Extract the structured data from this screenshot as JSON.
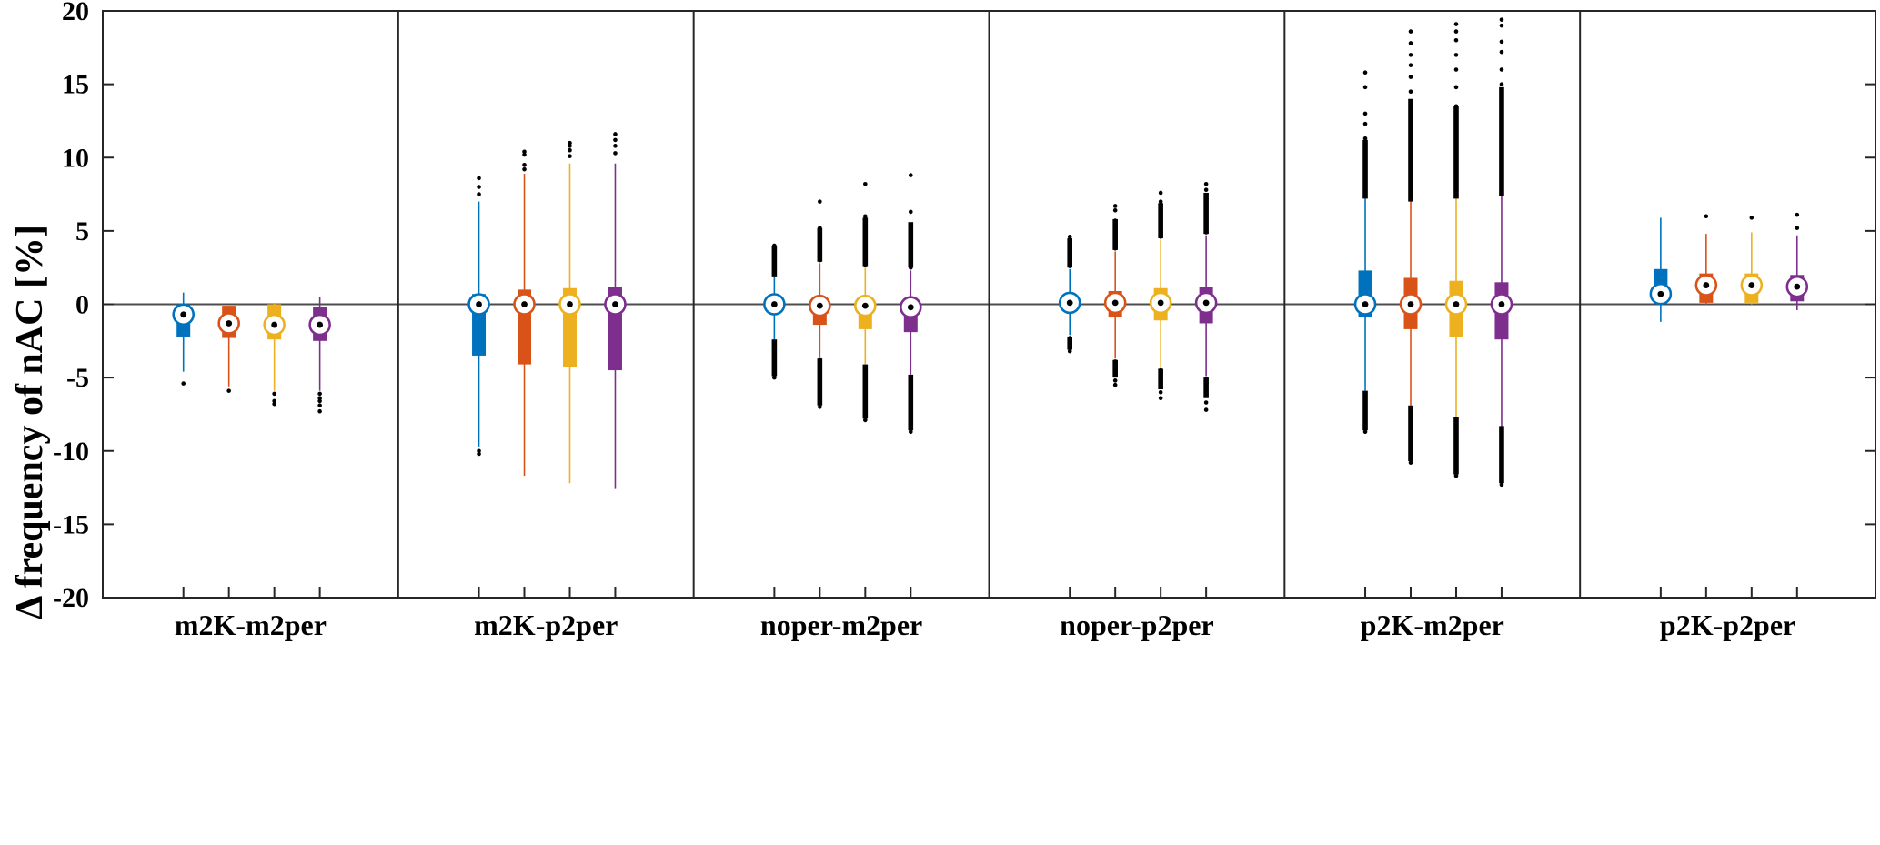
{
  "chart_data": {
    "type": "boxplot",
    "ylabel": "Δ frequency of nAC [%]",
    "ylim": [
      -20,
      20
    ],
    "yticks": [
      20,
      15,
      10,
      5,
      0,
      -5,
      -10,
      -15,
      -20
    ],
    "ytick_labels": [
      "20",
      "15",
      "10",
      "5",
      "0",
      "-5",
      "-10",
      "-15",
      "-20"
    ],
    "zero_line": 0,
    "series_colors": [
      "#0072BD",
      "#D95319",
      "#EDB120",
      "#7E2F8E"
    ],
    "groups": [
      {
        "label": "m2K-m2per",
        "boxes": [
          {
            "median": -0.7,
            "q1": -2.2,
            "q3": 0.0,
            "whisker_low": -4.6,
            "whisker_high": 0.8,
            "outliers": [
              -5.4
            ]
          },
          {
            "median": -1.3,
            "q1": -2.3,
            "q3": -0.1,
            "whisker_low": -5.6,
            "whisker_high": -0.1,
            "outliers": [
              -5.9
            ]
          },
          {
            "median": -1.4,
            "q1": -2.4,
            "q3": 0.0,
            "whisker_low": -5.9,
            "whisker_high": 0.1,
            "outliers": [
              -6.1,
              -6.6,
              -6.8
            ]
          },
          {
            "median": -1.4,
            "q1": -2.5,
            "q3": -0.2,
            "whisker_low": -5.9,
            "whisker_high": 0.5,
            "outliers": [
              -6.1,
              -6.4,
              -6.6,
              -6.9,
              -7.3
            ]
          }
        ]
      },
      {
        "label": "m2K-p2per",
        "boxes": [
          {
            "median": 0.0,
            "q1": -3.5,
            "q3": 0.7,
            "whisker_low": -9.7,
            "whisker_high": 7.0,
            "outliers": [
              7.5,
              8.0,
              8.6,
              -10.0,
              -10.2
            ]
          },
          {
            "median": 0.0,
            "q1": -4.1,
            "q3": 1.0,
            "whisker_low": -11.7,
            "whisker_high": 8.9,
            "outliers": [
              9.2,
              9.5,
              10.2,
              10.4
            ]
          },
          {
            "median": 0.0,
            "q1": -4.3,
            "q3": 1.1,
            "whisker_low": -12.2,
            "whisker_high": 9.6,
            "outliers": [
              10.1,
              10.5,
              10.8,
              11.0
            ]
          },
          {
            "median": 0.0,
            "q1": -4.5,
            "q3": 1.2,
            "whisker_low": -12.6,
            "whisker_high": 9.6,
            "outliers": [
              10.3,
              10.8,
              11.2,
              11.6
            ]
          }
        ]
      },
      {
        "label": "noper-m2per",
        "boxes": [
          {
            "median": 0.0,
            "q1": -0.6,
            "q3": 0.2,
            "whisker_low": -2.4,
            "whisker_high": 1.9,
            "outliers": [
              2.1,
              2.5,
              2.9,
              3.3,
              3.7,
              4.0,
              -2.6,
              -3.0,
              -3.4,
              -3.8,
              -4.2,
              -4.6,
              -5.0
            ],
            "outlier_ranges": [
              [
                1.9,
                4.0
              ],
              [
                -4.9,
                -2.4
              ]
            ]
          },
          {
            "median": -0.1,
            "q1": -1.4,
            "q3": 0.1,
            "whisker_low": -3.6,
            "whisker_high": 2.8,
            "outliers": [
              3.0,
              3.5,
              4.0,
              4.6,
              5.2,
              7.0,
              -3.8,
              -4.5,
              -5.2,
              -6.0,
              -6.6,
              -7.0
            ],
            "outlier_ranges": [
              [
                2.9,
                5.2
              ],
              [
                -6.9,
                -3.7
              ]
            ]
          },
          {
            "median": -0.1,
            "q1": -1.7,
            "q3": 0.0,
            "whisker_low": -4.1,
            "whisker_high": 2.5,
            "outliers": [
              2.7,
              3.2,
              3.8,
              4.4,
              5.0,
              5.7,
              6.0,
              8.2,
              -4.3,
              -5.0,
              -5.8,
              -6.6,
              -7.4,
              -7.9
            ],
            "outlier_ranges": [
              [
                2.6,
                5.9
              ],
              [
                -7.8,
                -4.1
              ]
            ]
          },
          {
            "median": -0.2,
            "q1": -1.9,
            "q3": -0.1,
            "whisker_low": -4.8,
            "whisker_high": 2.3,
            "outliers": [
              2.5,
              3.0,
              3.6,
              4.2,
              4.8,
              5.4,
              6.3,
              8.8,
              -5.0,
              -5.8,
              -6.6,
              -7.4,
              -8.2,
              -8.7
            ],
            "outlier_ranges": [
              [
                2.5,
                5.6
              ],
              [
                -8.6,
                -4.8
              ]
            ]
          }
        ]
      },
      {
        "label": "noper-p2per",
        "boxes": [
          {
            "median": 0.1,
            "q1": -0.3,
            "q3": 0.7,
            "whisker_low": -2.1,
            "whisker_high": 2.4,
            "outliers": [
              2.6,
              3.0,
              3.4,
              3.8,
              4.2,
              4.6,
              -2.3,
              -2.6,
              -2.9,
              -3.2
            ],
            "outlier_ranges": [
              [
                2.5,
                4.5
              ],
              [
                -3.1,
                -2.2
              ]
            ]
          },
          {
            "median": 0.1,
            "q1": -0.9,
            "q3": 0.9,
            "whisker_low": -3.7,
            "whisker_high": 3.6,
            "outliers": [
              3.8,
              4.3,
              4.8,
              5.2,
              5.7,
              6.4,
              6.7,
              -3.9,
              -4.3,
              -4.8,
              -5.2,
              -5.5
            ],
            "outlier_ranges": [
              [
                3.7,
                5.8
              ],
              [
                -5.0,
                -3.8
              ]
            ]
          },
          {
            "median": 0.1,
            "q1": -1.1,
            "q3": 1.1,
            "whisker_low": -4.3,
            "whisker_high": 4.4,
            "outliers": [
              4.6,
              5.1,
              5.6,
              6.0,
              6.5,
              7.0,
              7.6,
              -4.5,
              -5.0,
              -5.6,
              -6.0,
              -6.4
            ],
            "outlier_ranges": [
              [
                4.5,
                6.9
              ],
              [
                -5.8,
                -4.4
              ]
            ]
          },
          {
            "median": 0.1,
            "q1": -1.3,
            "q3": 1.2,
            "whisker_low": -4.9,
            "whisker_high": 4.7,
            "outliers": [
              4.9,
              5.4,
              6.0,
              6.6,
              7.2,
              7.8,
              8.2,
              -5.1,
              -5.7,
              -6.2,
              -6.7,
              -7.2
            ],
            "outlier_ranges": [
              [
                4.8,
                7.6
              ],
              [
                -6.4,
                -5.0
              ]
            ]
          }
        ]
      },
      {
        "label": "p2K-m2per",
        "boxes": [
          {
            "median": 0.0,
            "q1": -0.9,
            "q3": 2.3,
            "whisker_low": -5.9,
            "whisker_high": 7.2,
            "outliers": [
              7.5,
              8.5,
              9.5,
              10.5,
              11.3,
              12.3,
              13.0,
              14.8,
              15.8,
              -6.2,
              -7.0,
              -7.8,
              -8.4,
              -8.7
            ],
            "outlier_ranges": [
              [
                7.2,
                11.2
              ],
              [
                -8.6,
                -5.9
              ]
            ]
          },
          {
            "median": 0.0,
            "q1": -1.7,
            "q3": 1.8,
            "whisker_low": -6.9,
            "whisker_high": 7.0,
            "outliers": [
              7.5,
              9.0,
              10.5,
              12.0,
              13.5,
              14.5,
              15.5,
              16.3,
              17.0,
              17.8,
              18.6,
              -7.2,
              -8.0,
              -9.0,
              -10.0,
              -10.8
            ],
            "outlier_ranges": [
              [
                7.0,
                14.0
              ],
              [
                -10.7,
                -6.9
              ]
            ]
          },
          {
            "median": 0.0,
            "q1": -2.2,
            "q3": 1.6,
            "whisker_low": -7.7,
            "whisker_high": 7.2,
            "outliers": [
              7.5,
              9.0,
              10.5,
              12.0,
              13.5,
              14.8,
              16.0,
              17.0,
              18.0,
              18.6,
              19.1,
              -8.0,
              -9.0,
              -10.0,
              -11.0,
              -11.7
            ],
            "outlier_ranges": [
              [
                7.2,
                13.5
              ],
              [
                -11.6,
                -7.7
              ]
            ]
          },
          {
            "median": 0.0,
            "q1": -2.4,
            "q3": 1.5,
            "whisker_low": -8.3,
            "whisker_high": 7.4,
            "outliers": [
              7.8,
              9.5,
              11.0,
              12.5,
              14.0,
              15.0,
              16.0,
              17.2,
              17.9,
              19.0,
              19.4,
              -8.6,
              -9.5,
              -10.5,
              -11.5,
              -12.3
            ],
            "outlier_ranges": [
              [
                7.4,
                14.8
              ],
              [
                -12.2,
                -8.3
              ]
            ]
          }
        ]
      },
      {
        "label": "p2K-p2per",
        "boxes": [
          {
            "median": 0.7,
            "q1": 0.2,
            "q3": 2.4,
            "whisker_low": -1.2,
            "whisker_high": 5.9,
            "outliers": []
          },
          {
            "median": 1.3,
            "q1": 0.1,
            "q3": 2.1,
            "whisker_low": 0.0,
            "whisker_high": 4.8,
            "outliers": [
              6.0
            ]
          },
          {
            "median": 1.3,
            "q1": 0.1,
            "q3": 2.1,
            "whisker_low": 0.0,
            "whisker_high": 4.9,
            "outliers": [
              5.9
            ]
          },
          {
            "median": 1.2,
            "q1": 0.2,
            "q3": 2.0,
            "whisker_low": -0.4,
            "whisker_high": 4.7,
            "outliers": [
              5.2,
              6.1
            ]
          }
        ]
      }
    ]
  }
}
